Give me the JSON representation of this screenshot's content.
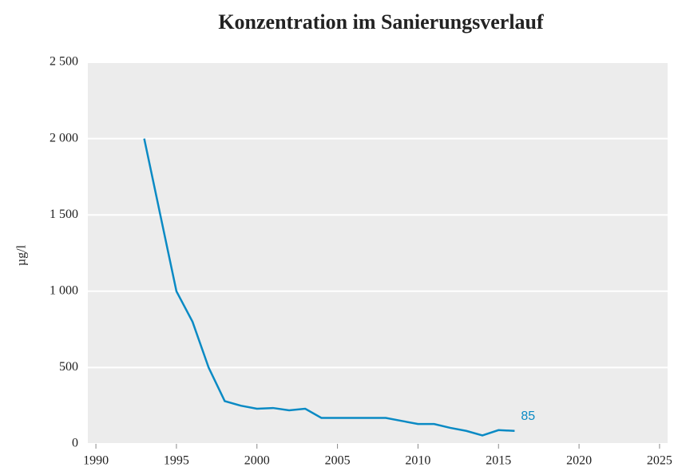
{
  "chart_data": {
    "type": "line",
    "title": "Konzentration im Sanierungsverlauf",
    "y_label": "µg/l",
    "x": [
      1993,
      1994,
      1995,
      1996,
      1997,
      1998,
      1999,
      2000,
      2001,
      2002,
      2003,
      2004,
      2005,
      2006,
      2007,
      2008,
      2009,
      2010,
      2011,
      2012,
      2013,
      2014,
      2015,
      2016
    ],
    "series": [
      {
        "name": "Konzentration",
        "color": "#0a8ac4",
        "values": [
          2000,
          1500,
          1000,
          800,
          500,
          280,
          250,
          230,
          235,
          220,
          230,
          170,
          170,
          170,
          170,
          170,
          150,
          130,
          130,
          105,
          85,
          55,
          90,
          85
        ]
      }
    ],
    "xlim": [
      1989.5,
      2025.5
    ],
    "xticks": [
      1990,
      1995,
      2000,
      2005,
      2010,
      2015,
      2020,
      2025
    ],
    "ylim": [
      0,
      2500
    ],
    "yticks": [
      0,
      500,
      {
        "value": 1000,
        "label": "1 000"
      },
      {
        "value": 1500,
        "label": "1 500"
      },
      {
        "value": 2000,
        "label": "2 000"
      },
      {
        "value": 2500,
        "label": "2 500"
      }
    ],
    "grid": true
  }
}
